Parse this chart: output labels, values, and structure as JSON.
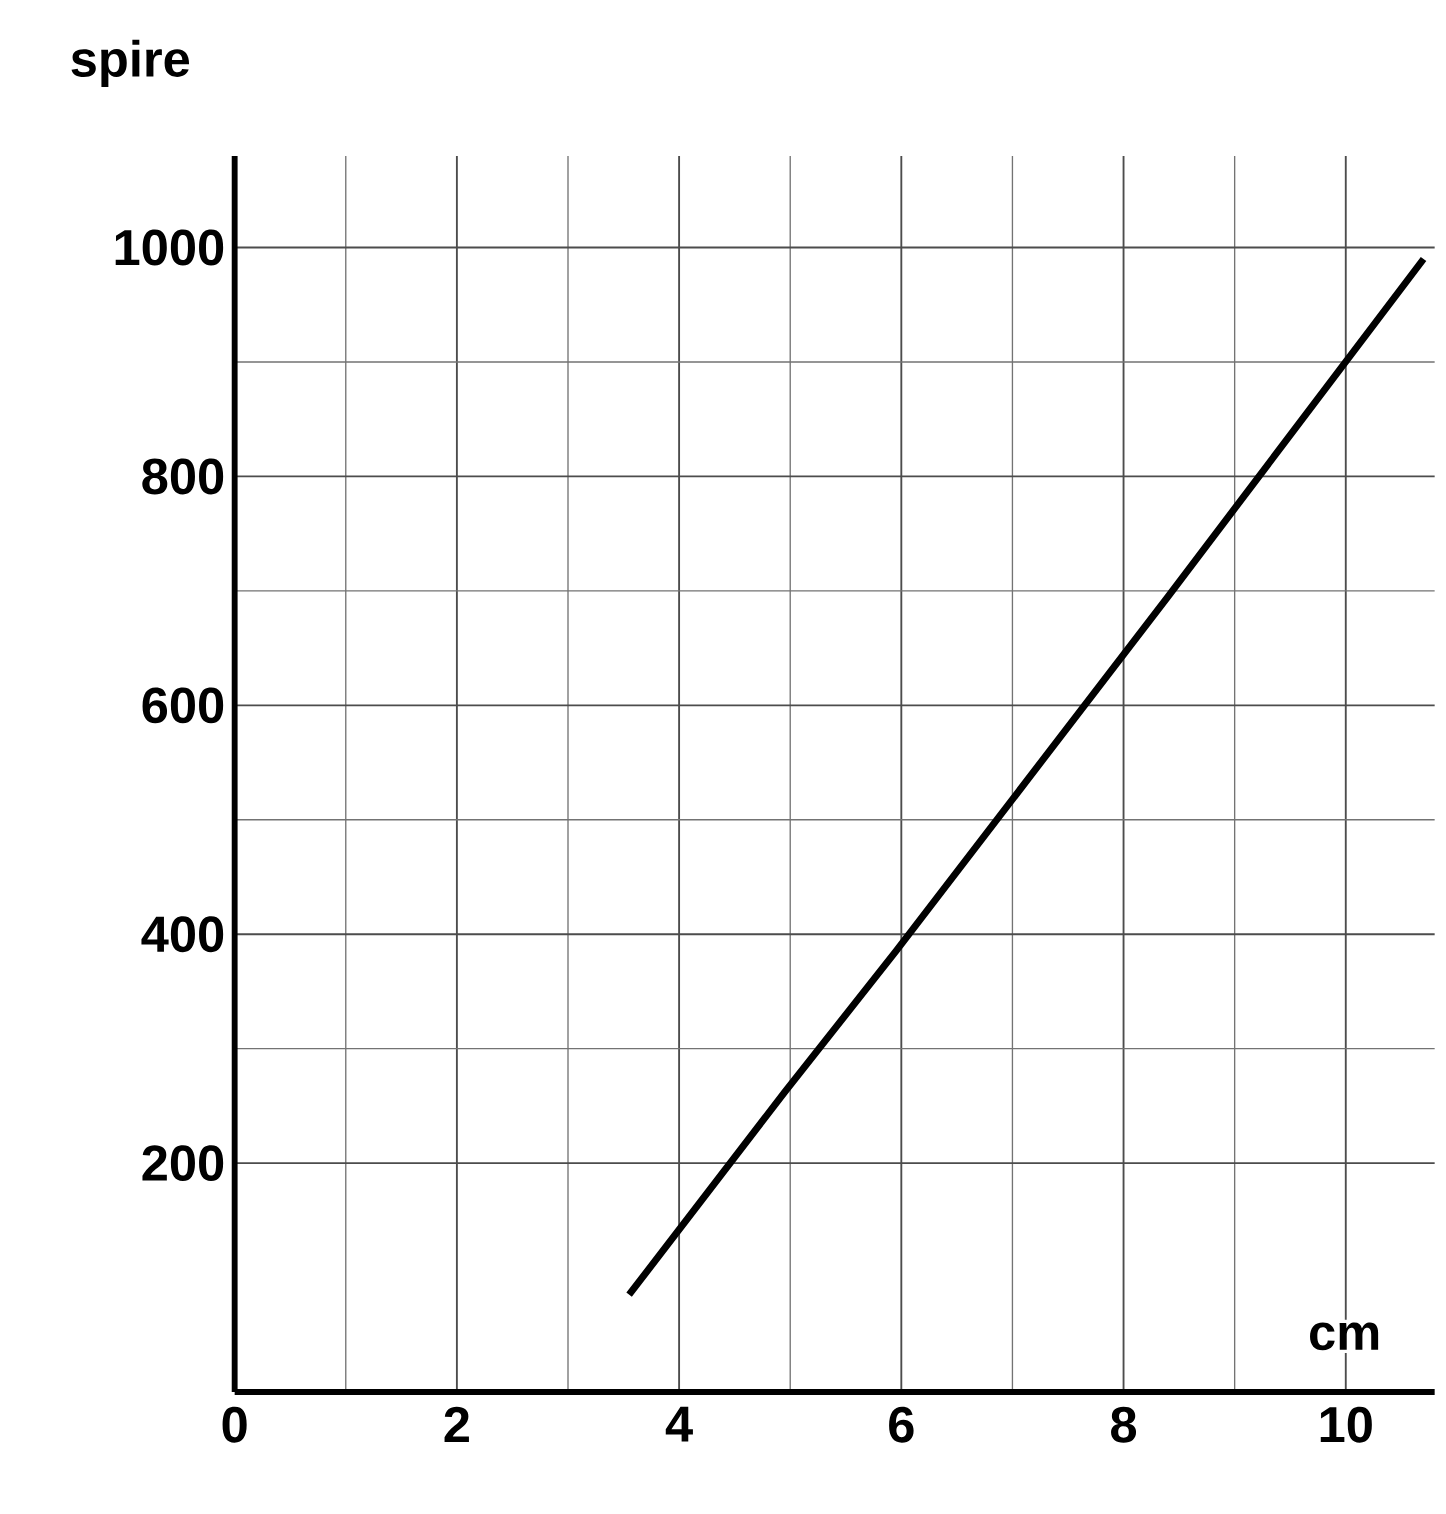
{
  "chart_data": {
    "type": "line",
    "xlabel": "cm",
    "ylabel": "spire",
    "x": [
      3.55,
      4.95,
      5.95,
      8.4,
      10.7
    ],
    "values": [
      85,
      262,
      385,
      695,
      990
    ],
    "color": "#000000",
    "xlim": [
      0,
      10.8
    ],
    "ylim": [
      0,
      1080
    ],
    "xticks": [
      0,
      2,
      4,
      6,
      8,
      10
    ],
    "yticks": [
      200,
      400,
      600,
      800,
      1000
    ],
    "grid": true,
    "line_style": "solid",
    "marker": "none"
  }
}
